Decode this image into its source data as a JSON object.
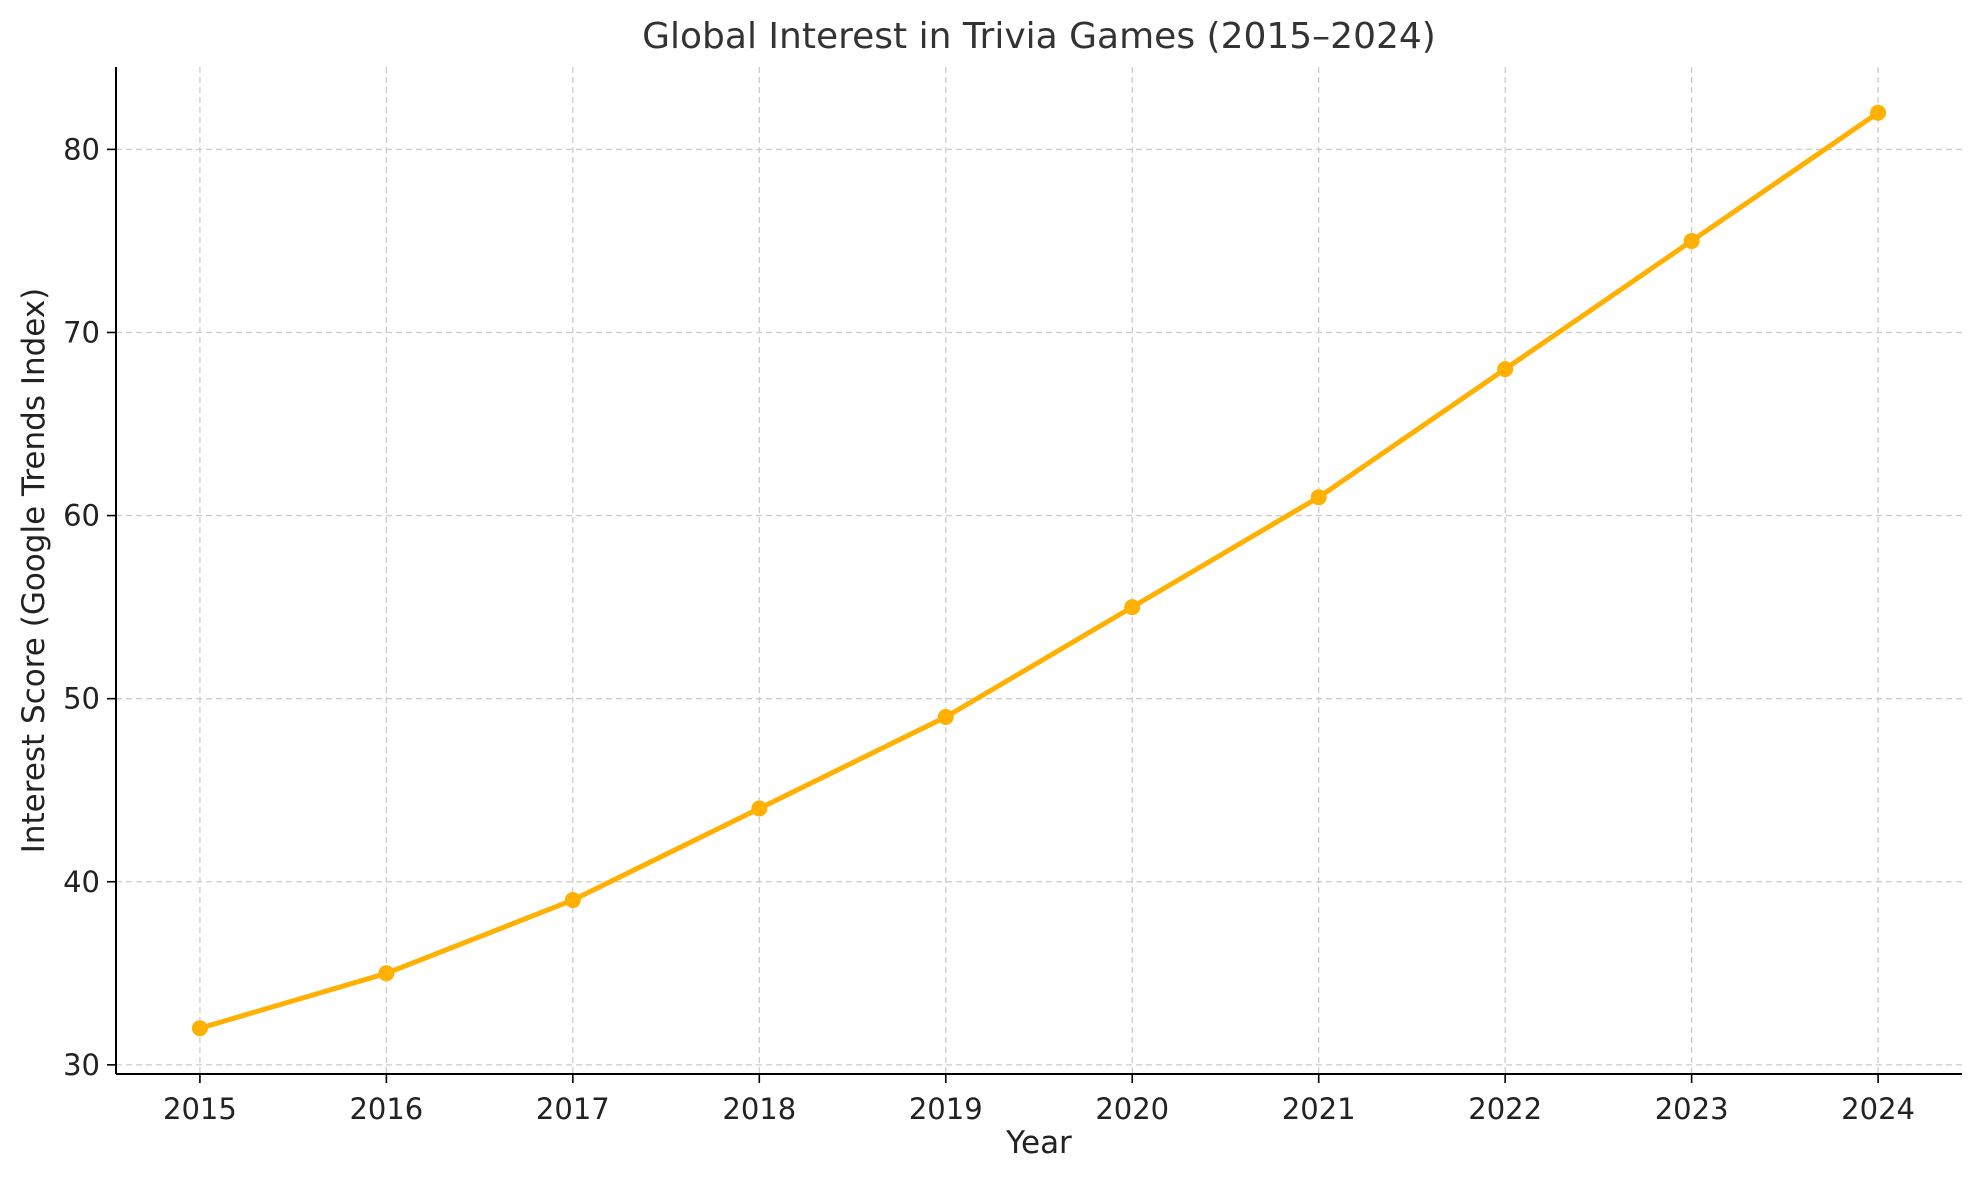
{
  "chart_data": {
    "type": "line",
    "title": "Global Interest in Trivia Games (2015–2024)",
    "xlabel": "Year",
    "ylabel": "Interest Score (Google Trends Index)",
    "x": [
      "2015",
      "2016",
      "2017",
      "2018",
      "2019",
      "2020",
      "2021",
      "2022",
      "2023",
      "2024"
    ],
    "series": [
      {
        "values": [
          32,
          35,
          39,
          44,
          49,
          55,
          61,
          68,
          75,
          82
        ],
        "color": "#FFB000",
        "marker": "circle"
      }
    ],
    "yticks": [
      "30",
      "40",
      "50",
      "60",
      "70",
      "80"
    ],
    "xlim": [
      2014.55,
      2024.45
    ],
    "ylim": [
      29.5,
      84.5
    ],
    "grid": true,
    "grid_style": "dashed"
  }
}
